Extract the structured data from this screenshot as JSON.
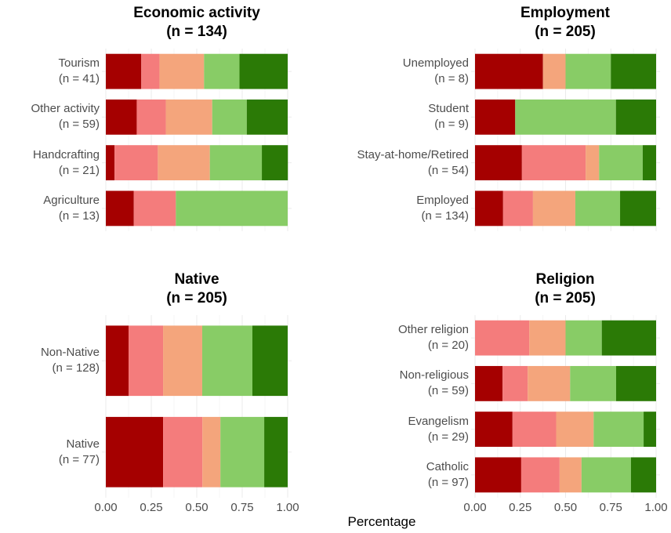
{
  "chart_data": [
    {
      "type": "bar",
      "orientation": "horizontal",
      "title": "Economic activity\n(n = 134)",
      "categories": [
        "Tourism\n(n = 41)",
        "Other activity\n(n = 59)",
        "Handcrafting\n(n = 21)",
        "Agriculture\n(n = 13)"
      ],
      "series": [
        {
          "color": "#a50000",
          "values": [
            0.195,
            0.17,
            0.048,
            0.154
          ]
        },
        {
          "color": "#f47c7c",
          "values": [
            0.1,
            0.16,
            0.238,
            0.231
          ]
        },
        {
          "color": "#f4a57c",
          "values": [
            0.245,
            0.255,
            0.286,
            0
          ]
        },
        {
          "color": "#88cc66",
          "values": [
            0.195,
            0.19,
            0.286,
            0.615
          ]
        },
        {
          "color": "#2b7a06",
          "values": [
            0.265,
            0.225,
            0.143,
            0
          ]
        }
      ],
      "xlim": [
        0,
        1
      ],
      "xticks": [
        0,
        0.25,
        0.5,
        0.75,
        1
      ],
      "grid": true
    },
    {
      "type": "bar",
      "orientation": "horizontal",
      "title": "Employment\n(n = 205)",
      "categories": [
        "Unemployed\n(n = 8)",
        "Student\n(n = 9)",
        "Stay-at-home/Retired\n(n = 54)",
        "Employed\n(n = 134)"
      ],
      "series": [
        {
          "color": "#a50000",
          "values": [
            0.375,
            0.222,
            0.259,
            0.155
          ]
        },
        {
          "color": "#f47c7c",
          "values": [
            0,
            0,
            0.352,
            0.165
          ]
        },
        {
          "color": "#f4a57c",
          "values": [
            0.125,
            0,
            0.074,
            0.234
          ]
        },
        {
          "color": "#88cc66",
          "values": [
            0.25,
            0.556,
            0.241,
            0.247
          ]
        },
        {
          "color": "#2b7a06",
          "values": [
            0.25,
            0.222,
            0.074,
            0.199
          ]
        }
      ],
      "xlim": [
        0,
        1
      ],
      "xticks": [
        0,
        0.25,
        0.5,
        0.75,
        1
      ],
      "grid": true
    },
    {
      "type": "bar",
      "orientation": "horizontal",
      "title": "Native\n(n = 205)",
      "categories": [
        "Non-Native\n(n = 128)",
        "Native\n(n = 77)"
      ],
      "series": [
        {
          "color": "#a50000",
          "values": [
            0.125,
            0.315
          ]
        },
        {
          "color": "#f47c7c",
          "values": [
            0.19,
            0.216
          ]
        },
        {
          "color": "#f4a57c",
          "values": [
            0.215,
            0.099
          ]
        },
        {
          "color": "#88cc66",
          "values": [
            0.276,
            0.241
          ]
        },
        {
          "color": "#2b7a06",
          "values": [
            0.194,
            0.129
          ]
        }
      ],
      "xlim": [
        0,
        1
      ],
      "xticks": [
        {
          "value": 0,
          "label": "0.00"
        },
        {
          "value": 0.25,
          "label": "0.25"
        },
        {
          "value": 0.5,
          "label": "0.50"
        },
        {
          "value": 0.75,
          "label": "0.75"
        },
        {
          "value": 1,
          "label": "1.00"
        }
      ],
      "grid": true
    },
    {
      "type": "bar",
      "orientation": "horizontal",
      "title": "Religion\n(n = 205)",
      "categories": [
        "Other religion\n(n = 20)",
        "Non-religious\n(n = 59)",
        "Evangelism\n(n = 29)",
        "Catholic\n(n = 97)"
      ],
      "series": [
        {
          "color": "#a50000",
          "values": [
            0,
            0.152,
            0.207,
            0.255
          ]
        },
        {
          "color": "#f47c7c",
          "values": [
            0.3,
            0.139,
            0.241,
            0.212
          ]
        },
        {
          "color": "#f4a57c",
          "values": [
            0.2,
            0.234,
            0.207,
            0.121
          ]
        },
        {
          "color": "#88cc66",
          "values": [
            0.2,
            0.254,
            0.276,
            0.273
          ]
        },
        {
          "color": "#2b7a06",
          "values": [
            0.3,
            0.221,
            0.069,
            0.139
          ]
        }
      ],
      "xlim": [
        0,
        1
      ],
      "xticks": [
        {
          "value": 0,
          "label": "0.00"
        },
        {
          "value": 0.25,
          "label": "0.25"
        },
        {
          "value": 0.5,
          "label": "0.50"
        },
        {
          "value": 0.75,
          "label": "0.75"
        },
        {
          "value": 1,
          "label": "1.00"
        }
      ],
      "grid": true
    }
  ],
  "xlabel": "Percentage"
}
